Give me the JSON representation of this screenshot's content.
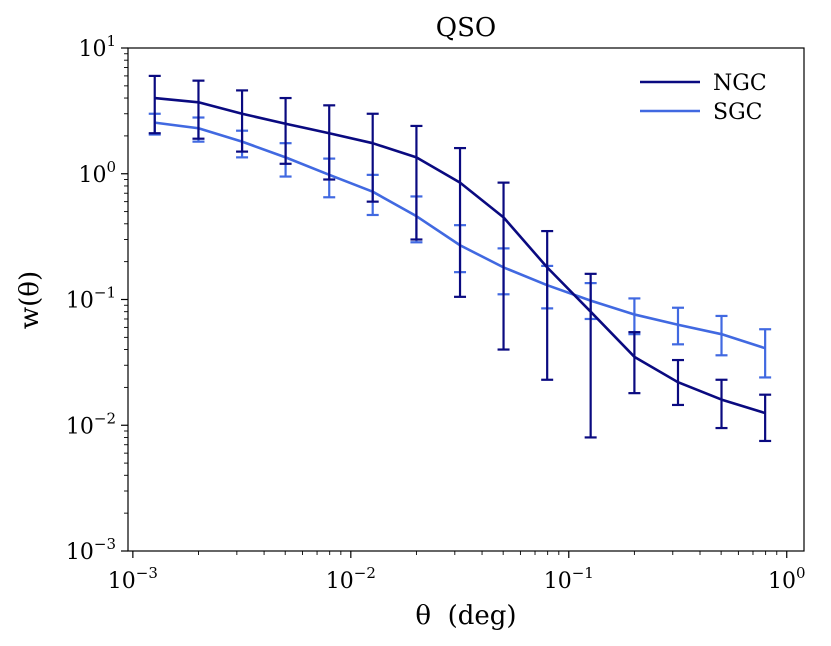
{
  "chart_data": {
    "type": "line",
    "title": "QSO",
    "xlabel": "θ  (deg)",
    "ylabel": "w(θ)",
    "xscale": "log",
    "yscale": "log",
    "xlim": [
      0.00095,
      1.2
    ],
    "ylim": [
      0.001,
      10
    ],
    "grid": false,
    "legend_position": "top-right",
    "x_ticks": [
      {
        "value": 0.001,
        "base": "10",
        "exp": "−3"
      },
      {
        "value": 0.01,
        "base": "10",
        "exp": "−2"
      },
      {
        "value": 0.1,
        "base": "10",
        "exp": "−1"
      },
      {
        "value": 1,
        "base": "10",
        "exp": "0"
      }
    ],
    "y_ticks": [
      {
        "value": 0.001,
        "base": "10",
        "exp": "−3"
      },
      {
        "value": 0.01,
        "base": "10",
        "exp": "−2"
      },
      {
        "value": 0.1,
        "base": "10",
        "exp": "−1"
      },
      {
        "value": 1,
        "base": "10",
        "exp": "0"
      },
      {
        "value": 10,
        "base": "10",
        "exp": "1"
      }
    ],
    "x": [
      0.00126,
      0.002,
      0.00317,
      0.00502,
      0.00796,
      0.0126,
      0.02,
      0.0317,
      0.0502,
      0.0796,
      0.126,
      0.2,
      0.317,
      0.502,
      0.796
    ],
    "series": [
      {
        "name": "NGC",
        "color": "#0a0a80",
        "values": [
          4.0,
          3.7,
          3.0,
          2.5,
          2.1,
          1.75,
          1.35,
          0.85,
          0.45,
          0.18,
          0.08,
          0.035,
          0.022,
          0.016,
          0.0125
        ],
        "err_low": [
          2.1,
          1.9,
          1.5,
          1.2,
          0.9,
          0.6,
          0.3,
          0.105,
          0.04,
          0.023,
          0.008,
          0.018,
          0.0145,
          0.0095,
          0.0075
        ],
        "err_high": [
          6.0,
          5.5,
          4.6,
          4.0,
          3.5,
          3.0,
          2.4,
          1.6,
          0.85,
          0.35,
          0.16,
          0.055,
          0.033,
          0.023,
          0.0175
        ]
      },
      {
        "name": "SGC",
        "color": "#4169e1",
        "values": [
          2.55,
          2.3,
          1.8,
          1.35,
          0.98,
          0.72,
          0.46,
          0.27,
          0.18,
          0.13,
          0.098,
          0.076,
          0.063,
          0.053,
          0.041
        ],
        "err_low": [
          2.05,
          1.8,
          1.35,
          0.95,
          0.65,
          0.47,
          0.285,
          0.165,
          0.11,
          0.085,
          0.07,
          0.053,
          0.044,
          0.036,
          0.024
        ],
        "err_high": [
          3.0,
          2.8,
          2.2,
          1.75,
          1.32,
          0.98,
          0.66,
          0.39,
          0.255,
          0.185,
          0.135,
          0.102,
          0.086,
          0.074,
          0.058
        ]
      }
    ]
  }
}
